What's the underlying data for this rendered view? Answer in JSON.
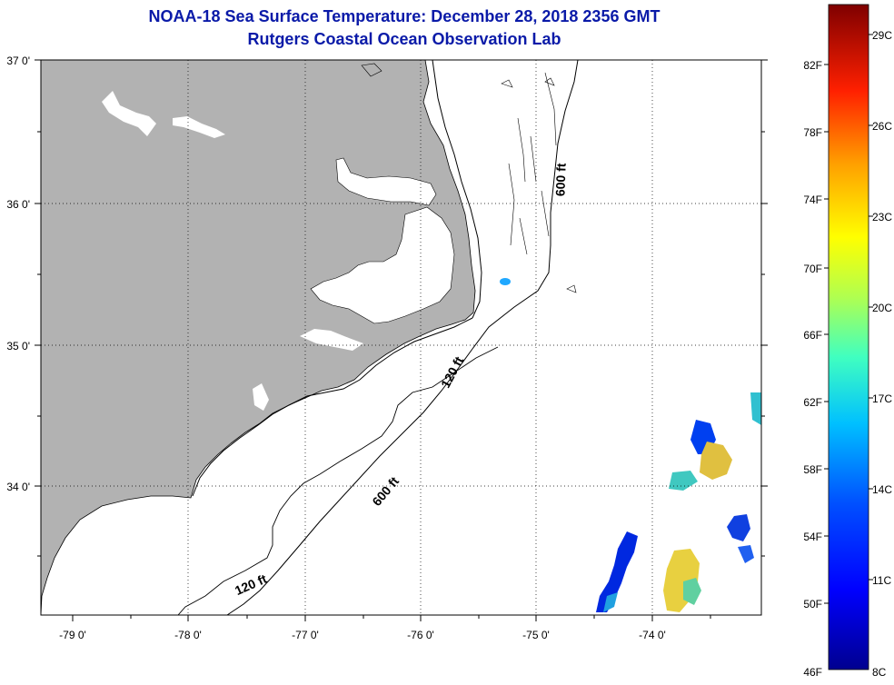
{
  "title": "NOAA-18 Sea Surface Temperature:  December 28, 2018 2356 GMT",
  "subtitle": "Rutgers Coastal Ocean Observation Lab",
  "map": {
    "lat_labels": [
      "37 0'",
      "36 0'",
      "35 0'",
      "34 0'"
    ],
    "lon_labels": [
      "-79 0'",
      "-78 0'",
      "-77 0'",
      "-76 0'",
      "-75 0'",
      "-74 0'"
    ],
    "lat_range": [
      33.1,
      37.0
    ],
    "lon_range": [
      -79.3,
      -73.3
    ],
    "contour_labels": [
      "600 ft",
      "120 ft",
      "600 ft",
      "120 ft"
    ],
    "land_color": "#b2b2b2",
    "ocean_color": "#ffffff"
  },
  "colorbar": {
    "fahrenheit_labels": [
      "82F",
      "78F",
      "74F",
      "70F",
      "66F",
      "62F",
      "58F",
      "54F",
      "50F",
      "46F"
    ],
    "celsius_labels": [
      "29C",
      "26C",
      "23C",
      "20C",
      "17C",
      "14C",
      "11C",
      "8C"
    ],
    "colors": [
      "#7f0000",
      "#ff0000",
      "#ff8000",
      "#ffff00",
      "#80ff80",
      "#00ffff",
      "#0080ff",
      "#0000ff",
      "#00008f"
    ]
  }
}
